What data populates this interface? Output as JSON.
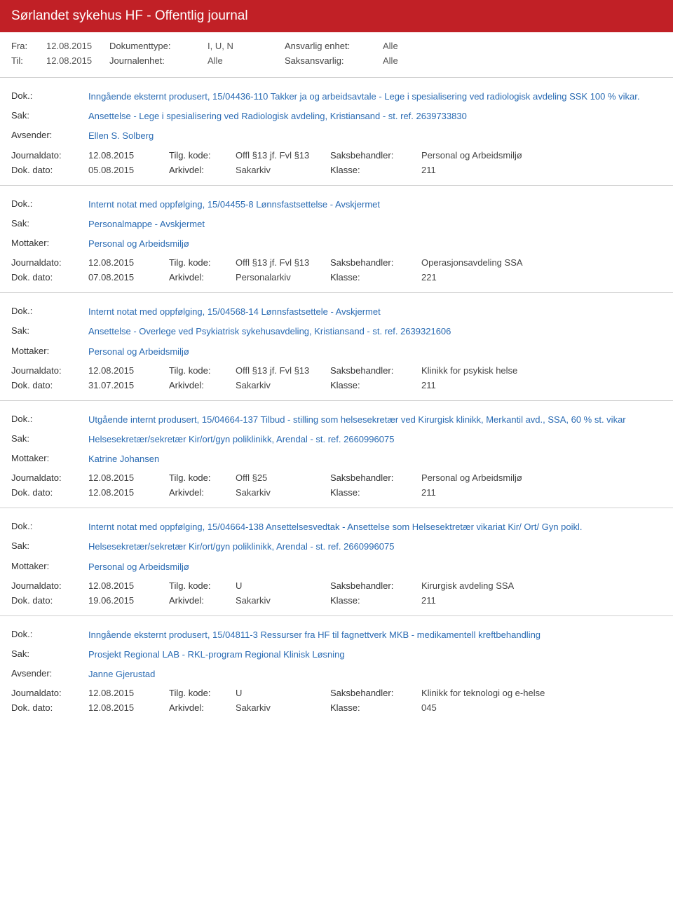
{
  "header": {
    "title": "Sørlandet sykehus HF - Offentlig journal"
  },
  "meta": {
    "fra_label": "Fra:",
    "fra_value": "12.08.2015",
    "til_label": "Til:",
    "til_value": "12.08.2015",
    "doktype_label": "Dokumenttype:",
    "doktype_value": "I, U, N",
    "journalenhet_label": "Journalenhet:",
    "journalenhet_value": "Alle",
    "ansvarlig_label": "Ansvarlig enhet:",
    "ansvarlig_value": "Alle",
    "saksansvarlig_label": "Saksansvarlig:",
    "saksansvarlig_value": "Alle"
  },
  "labels": {
    "dok": "Dok.:",
    "sak": "Sak:",
    "avsender": "Avsender:",
    "mottaker": "Mottaker:",
    "journaldato": "Journaldato:",
    "tilgkode": "Tilg. kode:",
    "saksbehandler": "Saksbehandler:",
    "dokdato": "Dok. dato:",
    "arkivdel": "Arkivdel:",
    "klasse": "Klasse:"
  },
  "records": [
    {
      "dok": "Inngående eksternt produsert, 15/04436-110 Takker ja og arbeidsavtale - Lege i spesialisering ved radiologisk avdeling SSK 100 % vikar.",
      "sak": "Ansettelse - Lege i spesialisering ved Radiologisk avdeling, Kristiansand - st. ref. 2639733830",
      "party_label": "Avsender:",
      "party": "Ellen S. Solberg",
      "journaldato": "12.08.2015",
      "tilgkode": "Offl §13 jf. Fvl §13",
      "saksbehandler": "Personal og Arbeidsmiljø",
      "dokdato": "05.08.2015",
      "arkivdel": "Sakarkiv",
      "klasse": "211"
    },
    {
      "dok": "Internt notat med oppfølging, 15/04455-8 Lønnsfastsettelse - Avskjermet",
      "sak": "Personalmappe - Avskjermet",
      "party_label": "Mottaker:",
      "party": "Personal og Arbeidsmiljø",
      "journaldato": "12.08.2015",
      "tilgkode": "Offl §13 jf. Fvl §13",
      "saksbehandler": "Operasjonsavdeling SSA",
      "dokdato": "07.08.2015",
      "arkivdel": "Personalarkiv",
      "klasse": "221"
    },
    {
      "dok": "Internt notat med oppfølging, 15/04568-14 Lønnsfastsettele - Avskjermet",
      "sak": "Ansettelse - Overlege ved Psykiatrisk sykehusavdeling, Kristiansand - st. ref. 2639321606",
      "party_label": "Mottaker:",
      "party": "Personal og Arbeidsmiljø",
      "journaldato": "12.08.2015",
      "tilgkode": "Offl §13 jf. Fvl §13",
      "saksbehandler": "Klinikk for psykisk helse",
      "dokdato": "31.07.2015",
      "arkivdel": "Sakarkiv",
      "klasse": "211"
    },
    {
      "dok": "Utgående internt produsert, 15/04664-137 Tilbud - stilling som helsesekretær ved Kirurgisk klinikk, Merkantil avd., SSA, 60 % st. vikar",
      "sak": "Helsesekretær/sekretær Kir/ort/gyn poliklinikk, Arendal - st. ref. 2660996075",
      "party_label": "Mottaker:",
      "party": "Katrine Johansen",
      "journaldato": "12.08.2015",
      "tilgkode": "Offl §25",
      "saksbehandler": "Personal og Arbeidsmiljø",
      "dokdato": "12.08.2015",
      "arkivdel": "Sakarkiv",
      "klasse": "211"
    },
    {
      "dok": "Internt notat med oppfølging, 15/04664-138 Ansettelsesvedtak - Ansettelse som Helsesektretær vikariat Kir/ Ort/ Gyn poikl.",
      "sak": "Helsesekretær/sekretær Kir/ort/gyn poliklinikk, Arendal - st. ref. 2660996075",
      "party_label": "Mottaker:",
      "party": "Personal og Arbeidsmiljø",
      "journaldato": "12.08.2015",
      "tilgkode": "U",
      "saksbehandler": "Kirurgisk avdeling SSA",
      "dokdato": "19.06.2015",
      "arkivdel": "Sakarkiv",
      "klasse": "211"
    },
    {
      "dok": "Inngående eksternt produsert, 15/04811-3 Ressurser fra HF til fagnettverk MKB - medikamentell kreftbehandling",
      "sak": "Prosjekt Regional LAB - RKL-program Regional Klinisk Løsning",
      "party_label": "Avsender:",
      "party": "Janne Gjerustad",
      "journaldato": "12.08.2015",
      "tilgkode": "U",
      "saksbehandler": "Klinikk for teknologi og e-helse",
      "dokdato": "12.08.2015",
      "arkivdel": "Sakarkiv",
      "klasse": "045"
    }
  ]
}
